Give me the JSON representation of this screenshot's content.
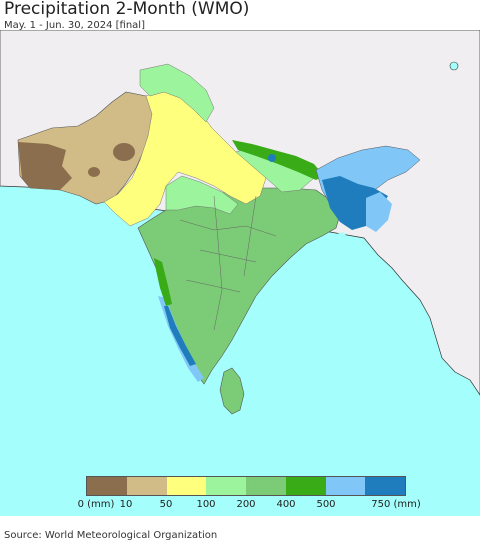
{
  "header": {
    "title": "Precipitation 2-Month (WMO)",
    "subtitle": "May. 1 - Jun. 30, 2024 [final]"
  },
  "colors": {
    "ocean": "#a4fffc",
    "land_outside": "#f0eef0",
    "border": "#333333",
    "class_0_10": "#8b6e4e",
    "class_10_50": "#d1bc87",
    "class_50_100": "#ffff7e",
    "class_100_200": "#9cf59c",
    "class_200_400": "#7ccb77",
    "class_400_500": "#38ab17",
    "class_500_750": "#80c6f7",
    "class_750_plus": "#1f7dbd"
  },
  "legend": {
    "swatches": [
      "#8b6e4e",
      "#d1bc87",
      "#ffff7e",
      "#9cf59c",
      "#7ccb77",
      "#38ab17",
      "#80c6f7",
      "#1f7dbd"
    ],
    "labels": [
      "0 (mm)",
      "10",
      "50",
      "100",
      "200",
      "400",
      "500",
      "750 (mm)"
    ]
  },
  "footer": {
    "source": "Source: World Meteorological Organization"
  }
}
